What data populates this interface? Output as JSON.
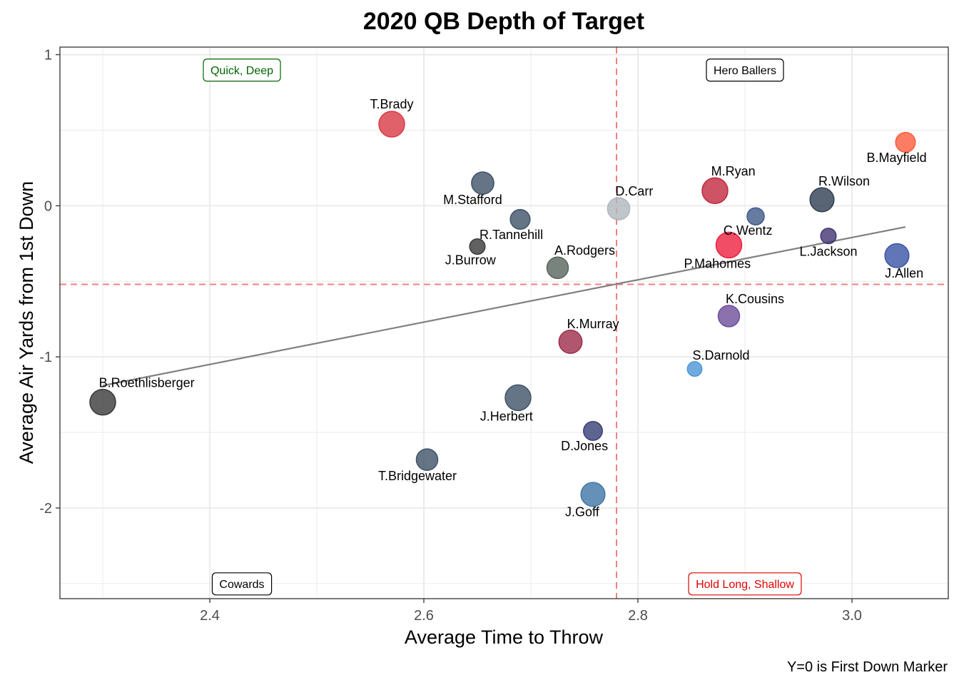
{
  "chart_data": {
    "type": "scatter",
    "title": "2020 QB Depth of Target",
    "xlabel": "Average Time to Throw",
    "ylabel": "Average Air Yards from 1st Down",
    "caption": "Y=0 is First Down Marker",
    "xlim": [
      2.26,
      3.09
    ],
    "ylim": [
      -2.6,
      1.05
    ],
    "x_ticks": [
      2.4,
      2.6,
      2.8,
      3.0
    ],
    "x_tick_labels": [
      "2.4",
      "2.6",
      "2.8",
      "3.0"
    ],
    "y_ticks": [
      1,
      0,
      -1,
      -2
    ],
    "y_tick_labels": [
      "1",
      "0",
      "-1",
      "-2"
    ],
    "grid": true,
    "reference_lines": {
      "vertical_x": 2.78,
      "horizontal_y": -0.52,
      "color": "#f08080"
    },
    "trend_line": {
      "x": [
        2.3,
        3.05
      ],
      "y": [
        -1.19,
        -0.14
      ],
      "color": "#808080"
    },
    "quadrant_labels": [
      {
        "text": "Quick, Deep",
        "x": 2.43,
        "y": 0.9,
        "color": "#006400"
      },
      {
        "text": "Hero Ballers",
        "x": 2.9,
        "y": 0.9,
        "color": "#000000"
      },
      {
        "text": "Cowards",
        "x": 2.43,
        "y": -2.5,
        "color": "#000000"
      },
      {
        "text": "Hold Long, Shallow",
        "x": 2.9,
        "y": -2.5,
        "color": "#e00000"
      }
    ],
    "points": [
      {
        "name": "T.Brady",
        "x": 2.57,
        "y": 0.54,
        "size": 3.0,
        "color": "#d83a44",
        "label_pos": "above"
      },
      {
        "name": "M.Stafford",
        "x": 2.655,
        "y": 0.15,
        "size": 2.6,
        "color": "#3f5268",
        "label_pos": "below-left"
      },
      {
        "name": "R.Tannehill",
        "x": 2.69,
        "y": -0.09,
        "size": 2.3,
        "color": "#3f5268",
        "label_pos": "below-left"
      },
      {
        "name": "J.Burrow",
        "x": 2.65,
        "y": -0.27,
        "size": 1.8,
        "color": "#3a3a3a",
        "label_pos": "below-left"
      },
      {
        "name": "A.Rodgers",
        "x": 2.725,
        "y": -0.41,
        "size": 2.5,
        "color": "#56645c",
        "label_pos": "above-right"
      },
      {
        "name": "D.Carr",
        "x": 2.782,
        "y": -0.02,
        "size": 2.6,
        "color": "#b0b7bc",
        "label_pos": "above-right"
      },
      {
        "name": "M.Ryan",
        "x": 2.872,
        "y": 0.1,
        "size": 3.0,
        "color": "#c0283e",
        "label_pos": "above-right"
      },
      {
        "name": "R.Wilson",
        "x": 2.972,
        "y": 0.04,
        "size": 2.8,
        "color": "#2f3d52",
        "label_pos": "above-right"
      },
      {
        "name": "B.Mayfield",
        "x": 3.05,
        "y": 0.42,
        "size": 2.3,
        "color": "#fb5c3c",
        "label_pos": "below-left"
      },
      {
        "name": "C.Wentz",
        "x": 2.91,
        "y": -0.07,
        "size": 2.0,
        "color": "#3f5a88",
        "label_pos": "below-left"
      },
      {
        "name": "P.Mahomes",
        "x": 2.885,
        "y": -0.26,
        "size": 3.0,
        "color": "#ee2040",
        "label_pos": "below-left"
      },
      {
        "name": "L.Jackson",
        "x": 2.978,
        "y": -0.2,
        "size": 1.8,
        "color": "#443472",
        "label_pos": "below"
      },
      {
        "name": "J.Allen",
        "x": 3.042,
        "y": -0.33,
        "size": 2.8,
        "color": "#3a54a5",
        "label_pos": "below-right"
      },
      {
        "name": "K.Cousins",
        "x": 2.885,
        "y": -0.73,
        "size": 2.5,
        "color": "#6f4d9b",
        "label_pos": "above-right"
      },
      {
        "name": "K.Murray",
        "x": 2.737,
        "y": -0.9,
        "size": 2.7,
        "color": "#9c2d4b",
        "label_pos": "above-right"
      },
      {
        "name": "S.Darnold",
        "x": 2.853,
        "y": -1.08,
        "size": 1.7,
        "color": "#4c96d7",
        "label_pos": "above-right"
      },
      {
        "name": "B.Roethlisberger",
        "x": 2.3,
        "y": -1.3,
        "size": 3.0,
        "color": "#3a3a3a",
        "label_pos": "above-right"
      },
      {
        "name": "J.Herbert",
        "x": 2.688,
        "y": -1.27,
        "size": 3.0,
        "color": "#3f5268",
        "label_pos": "below-left"
      },
      {
        "name": "D.Jones",
        "x": 2.758,
        "y": -1.49,
        "size": 2.2,
        "color": "#373e76",
        "label_pos": "below-left"
      },
      {
        "name": "T.Bridgewater",
        "x": 2.603,
        "y": -1.68,
        "size": 2.5,
        "color": "#3f5268",
        "label_pos": "below-left"
      },
      {
        "name": "J.Goff",
        "x": 2.758,
        "y": -1.91,
        "size": 2.8,
        "color": "#3f76a6",
        "label_pos": "below-left"
      }
    ]
  }
}
